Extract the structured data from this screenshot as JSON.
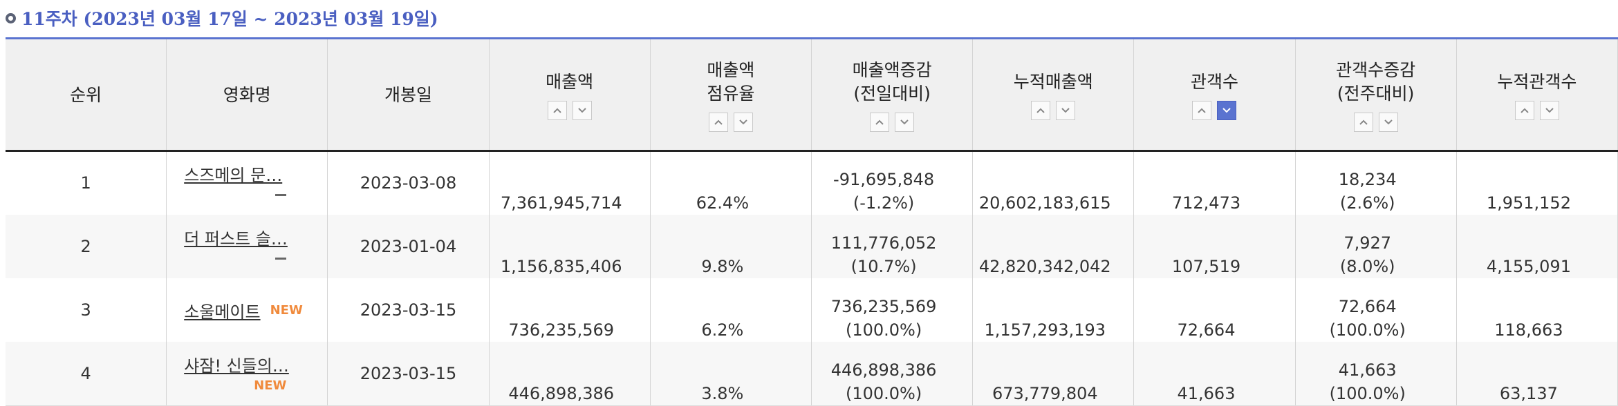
{
  "header": {
    "title": "11주차 (2023년 03월 17일 ~ 2023년 03월 19일)"
  },
  "table": {
    "columns": [
      {
        "label": "순위"
      },
      {
        "label": "영화명"
      },
      {
        "label": "개봉일"
      },
      {
        "label": "매출액",
        "sortable": true
      },
      {
        "label": "매출액\n점유율",
        "sortable": true
      },
      {
        "label": "매출액증감\n(전일대비)",
        "sortable": true
      },
      {
        "label": "누적매출액",
        "sortable": true
      },
      {
        "label": "관객수",
        "sortable": true,
        "active_sort": "desc"
      },
      {
        "label": "관객수증감\n(전주대비)",
        "sortable": true
      },
      {
        "label": "누적관객수",
        "sortable": true
      }
    ],
    "rows": [
      [
        "1",
        {
          "title": "스즈메의 문…"
        },
        "2023-03-08",
        "7,361,945,714",
        "62.4%",
        [
          "-91,695,848",
          "(-1.2%)"
        ],
        "20,602,183,615",
        "712,473",
        [
          "18,234",
          "(2.6%)"
        ],
        "1,951,152"
      ],
      [
        "2",
        {
          "title": "더 퍼스트 슬…"
        },
        "2023-01-04",
        "1,156,835,406",
        "9.8%",
        [
          "111,776,052",
          "(10.7%)"
        ],
        "42,820,342,042",
        "107,519",
        [
          "7,927",
          "(8.0%)"
        ],
        "4,155,091"
      ],
      [
        "3",
        {
          "title": "소울메이트",
          "badge": "NEW"
        },
        "2023-03-15",
        "736,235,569",
        "6.2%",
        [
          "736,235,569",
          "(100.0%)"
        ],
        "1,157,293,193",
        "72,664",
        [
          "72,664",
          "(100.0%)"
        ],
        "118,663"
      ],
      [
        "4",
        {
          "title": "샤잠! 신들의…",
          "badge": "NEW"
        },
        "2023-03-15",
        "446,898,386",
        "3.8%",
        [
          "446,898,386",
          "(100.0%)"
        ],
        "673,779,804",
        "41,663",
        [
          "41,663",
          "(100.0%)"
        ],
        "63,137"
      ]
    ]
  }
}
